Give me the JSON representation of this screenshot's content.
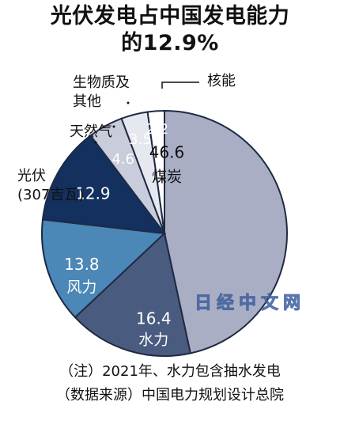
{
  "title": {
    "line1": "光伏发电占中国发电能力",
    "line2": "的12.9%"
  },
  "chart_data": {
    "type": "pie",
    "unit": "%",
    "slices": [
      {
        "label": "煤炭",
        "value": 46.6,
        "color": "#a9aec4",
        "text_color": "#111111"
      },
      {
        "label": "水力",
        "value": 16.4,
        "color": "#4a5b80",
        "text_color": "#ffffff"
      },
      {
        "label": "风力",
        "value": 13.8,
        "color": "#4b87b7",
        "text_color": "#ffffff"
      },
      {
        "label": "光伏",
        "sublabel": "(307吉瓦)",
        "value": 12.9,
        "color": "#14305e",
        "text_color": "#ffffff"
      },
      {
        "label": "天然气",
        "value": 4.6,
        "color": "#c8ccdb",
        "text_color": "#ffffff"
      },
      {
        "label": "生物质及其他",
        "label_lines": [
          "生物质及",
          "其他"
        ],
        "value": 3.5,
        "color": "#e6e8f0",
        "text_color": "#ffffff"
      },
      {
        "label": "核能",
        "value": 2.2,
        "color": "#ffffff",
        "text_color": "#ffffff"
      }
    ]
  },
  "notes": {
    "note1": "（注）2021年、水力包含抽水发电",
    "note2": "（数据来源）中国电力规划设计总院"
  },
  "watermark": "日经中文网",
  "colors": {
    "outline": "#1f2a44",
    "watermark": "#3d5f9e"
  }
}
